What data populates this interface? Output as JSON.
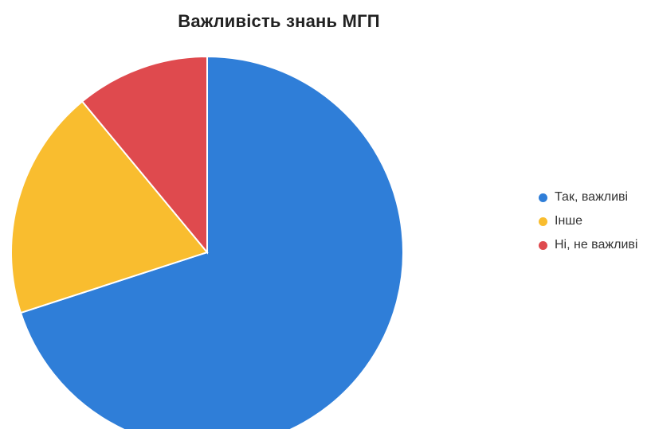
{
  "chart_data": {
    "type": "pie",
    "title": "Важливість знань МГП",
    "slices": [
      {
        "label": "Так, важливі",
        "value": 70,
        "color": "#2F7ED8"
      },
      {
        "label": "Інше",
        "value": 19,
        "color": "#F9BD2F"
      },
      {
        "label": "Ні, не важливі",
        "value": 11,
        "color": "#DF4A4E"
      }
    ],
    "legend_position": "right"
  }
}
